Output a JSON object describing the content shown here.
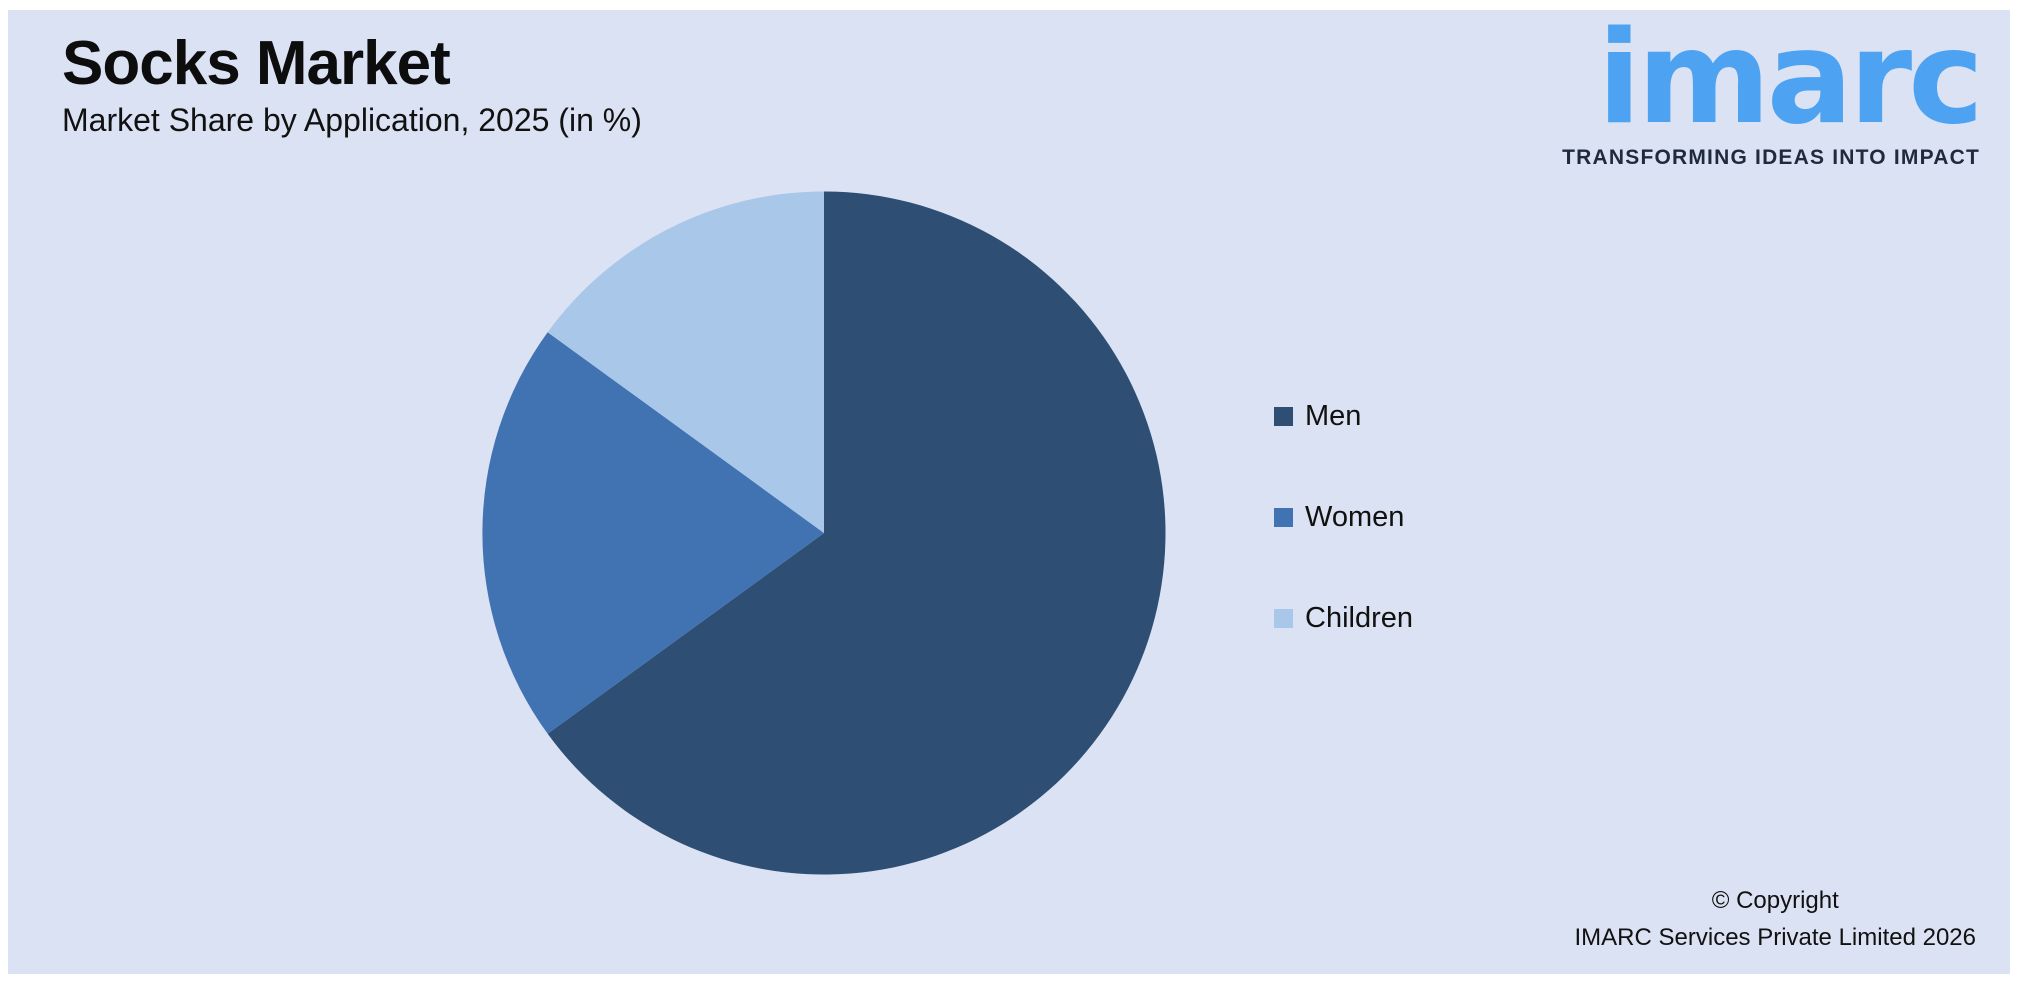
{
  "page": {
    "title": "Socks Market",
    "subtitle": "Market Share by Application, 2025 (in %)",
    "background_color": "#dbe2f3",
    "frame_color": "#ffffff"
  },
  "logo": {
    "wordmark": "imarc",
    "tagline": "TRANSFORMING IDEAS INTO IMPACT",
    "wordmark_color": "#4da3f2",
    "tagline_color": "#1f2b3d"
  },
  "copyright": {
    "line1": "© Copyright",
    "line2": "IMARC Services Private Limited 2026"
  },
  "chart_data": {
    "type": "pie",
    "title": "Socks Market",
    "subtitle": "Market Share by Application, 2025 (in %)",
    "categories": [
      "Men",
      "Women",
      "Children"
    ],
    "values": [
      65,
      20,
      15
    ],
    "unit": "%",
    "colors": [
      "#2e4e74",
      "#4173b3",
      "#a9c7e8"
    ],
    "start_angle_deg": 0,
    "direction": "clockwise",
    "legend_position": "right",
    "data_labels": false
  }
}
